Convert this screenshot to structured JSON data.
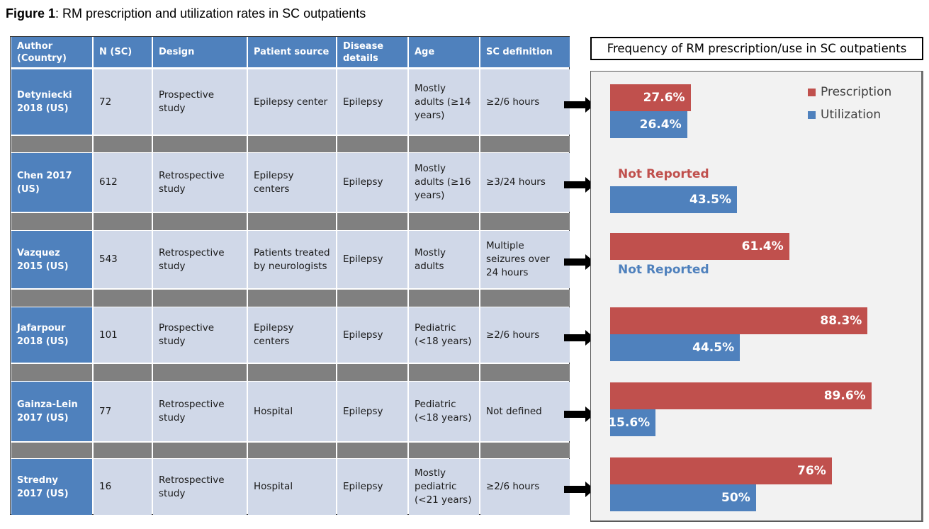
{
  "figure": {
    "label": "Figure 1",
    "caption": ": RM prescription and utilization rates in SC outpatients"
  },
  "table": {
    "headers": [
      "Author (Country)",
      "N (SC)",
      "Design",
      "Patient source",
      "Disease details",
      "Age",
      "SC definition"
    ],
    "rows": [
      [
        "Detyniecki 2018 (US)",
        "72",
        "Prospective study",
        "Epilepsy center",
        "Epilepsy",
        "Mostly adults (≥14 years)",
        "≥2/6 hours"
      ],
      [
        "Chen 2017 (US)",
        "612",
        "Retrospective study",
        "Epilepsy centers",
        "Epilepsy",
        "Mostly adults (≥16 years)",
        "≥3/24 hours"
      ],
      [
        "Vazquez 2015 (US)",
        "543",
        "Retrospective study",
        "Patients treated by neurologists",
        "Epilepsy",
        "Mostly adults",
        "Multiple seizures over 24 hours"
      ],
      [
        "Jafarpour 2018 (US)",
        "101",
        "Prospective study",
        "Epilepsy centers",
        "Epilepsy",
        "Pediatric (<18 years)",
        "≥2/6 hours"
      ],
      [
        "Gainza-Lein 2017 (US)",
        "77",
        "Retrospective study",
        "Hospital",
        "Epilepsy",
        "Pediatric (<18 years)",
        "Not defined"
      ],
      [
        "Stredny 2017 (US)",
        "16",
        "Retrospective study",
        "Hospital",
        "Epilepsy",
        "Mostly pediatric (<21 years)",
        "≥2/6 hours"
      ]
    ]
  },
  "colors": {
    "prescription": "#c0504d",
    "utilization": "#4f81bd",
    "header": "#4f81bd",
    "row": "#d0d8e8",
    "gap": "#808080"
  },
  "chart_data": {
    "type": "bar",
    "orientation": "horizontal",
    "title": "Frequency of RM prescription/use in SC outpatients",
    "categories": [
      "Detyniecki 2018 (US)",
      "Chen 2017 (US)",
      "Vazquez 2015 (US)",
      "Jafarpour 2018 (US)",
      "Gainza-Lein 2017 (US)",
      "Stredny 2017 (US)"
    ],
    "unit": "%",
    "xlim": [
      0,
      100
    ],
    "grid": false,
    "legend_position": "top-right",
    "not_reported_label": "Not Reported",
    "series": [
      {
        "name": "Prescription",
        "values": [
          27.6,
          null,
          61.4,
          88.3,
          89.6,
          76
        ],
        "labels": [
          "27.6%",
          "Not Reported",
          "61.4%",
          "88.3%",
          "89.6%",
          "76%"
        ]
      },
      {
        "name": "Utilization",
        "values": [
          26.4,
          43.5,
          null,
          44.5,
          15.6,
          50
        ],
        "labels": [
          "26.4%",
          "43.5%",
          "Not Reported",
          "44.5%",
          "15.6%",
          "50%"
        ]
      }
    ]
  }
}
